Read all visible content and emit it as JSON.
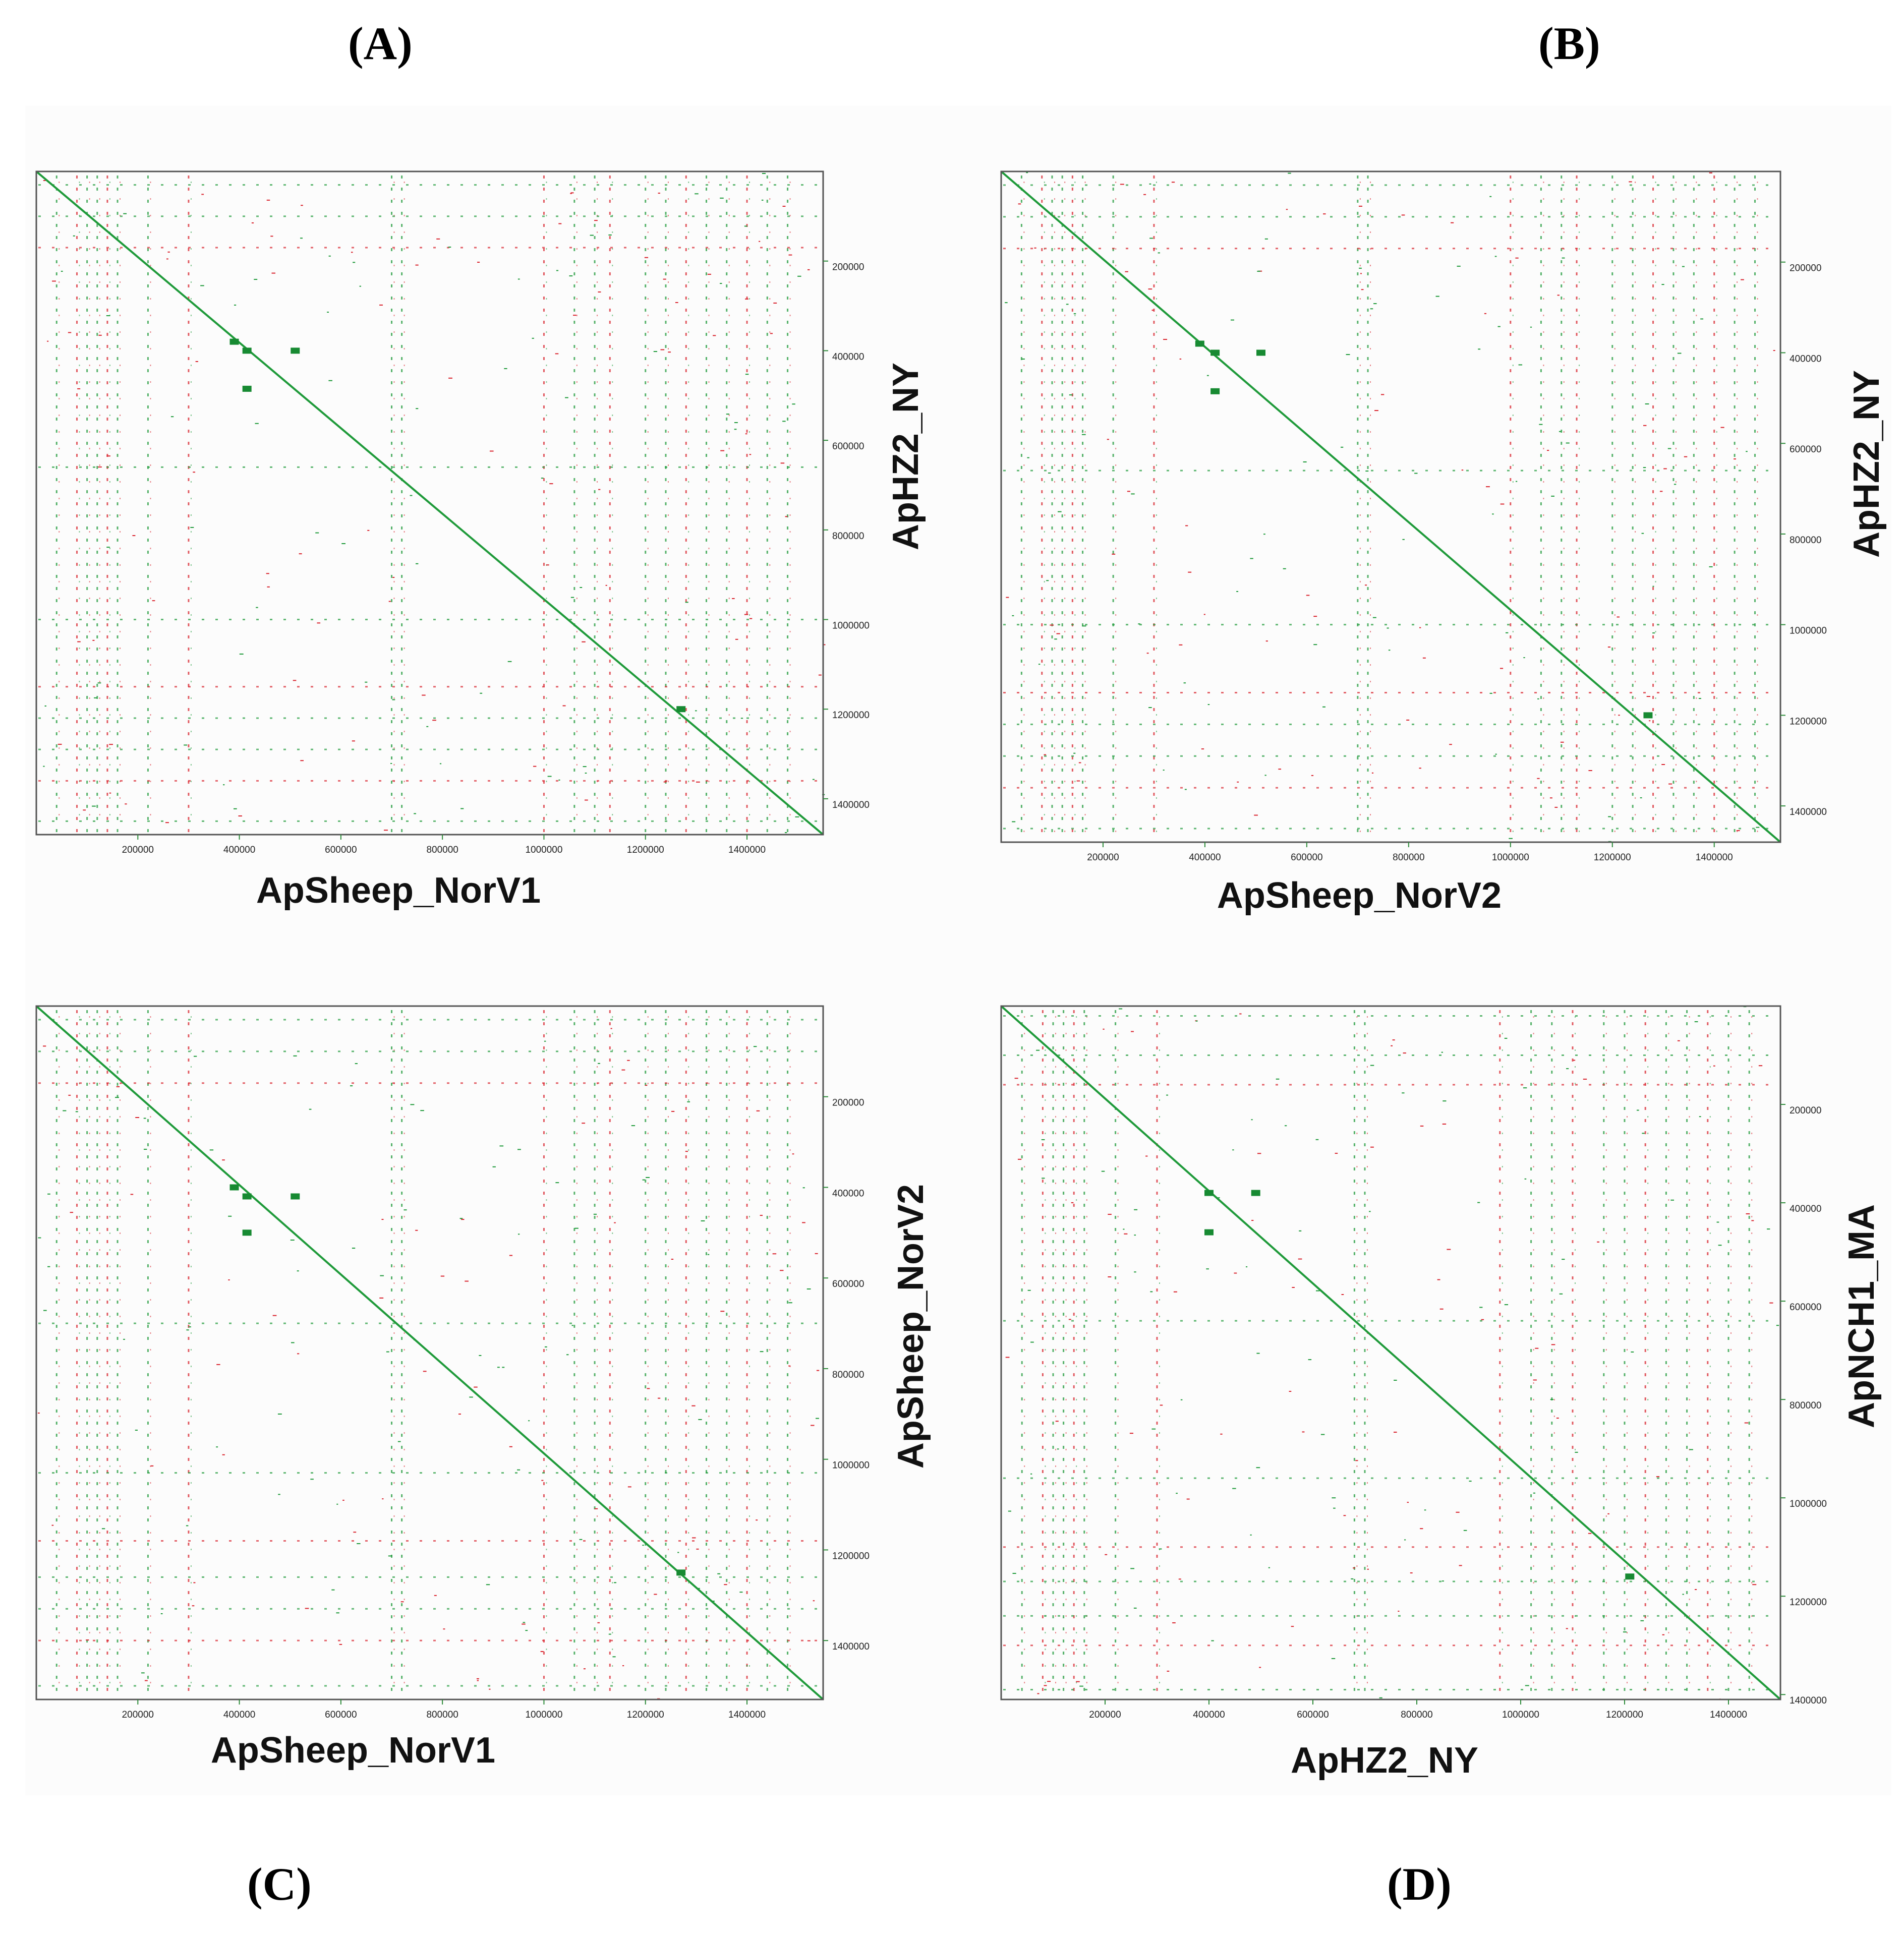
{
  "figure": {
    "panels": [
      {
        "letter": "(A)",
        "xlabel": "ApSheep_NorV1",
        "ylabel": "ApHZ2_NY"
      },
      {
        "letter": "(B)",
        "xlabel": "ApSheep_NorV2",
        "ylabel": "ApHZ2_NY"
      },
      {
        "letter": "(C)",
        "xlabel": "ApSheep_NorV1",
        "ylabel": "ApSheep_NorV2"
      },
      {
        "letter": "(D)",
        "xlabel": "ApHZ2_NY",
        "ylabel": "ApNCH1_MA"
      }
    ]
  },
  "colors": {
    "forward": "#1f9a3a",
    "reverse": "#d9232d",
    "axis": "#2e8b3a",
    "frame": "#555555"
  },
  "chart_data": [
    {
      "type": "scatter",
      "title": "(A)",
      "xlabel": "ApSheep_NorV1",
      "ylabel": "ApHZ2_NY",
      "xlim": [
        0,
        1550000
      ],
      "ylim": [
        0,
        1480000
      ],
      "xticks": [
        200000,
        400000,
        600000,
        800000,
        1000000,
        1200000,
        1400000
      ],
      "yticks": [
        200000,
        400000,
        600000,
        800000,
        1000000,
        1200000,
        1400000
      ],
      "diagonal": {
        "x": [
          0,
          1550000
        ],
        "y": [
          0,
          1480000
        ]
      },
      "blocks": [
        [
          390000,
          380000
        ],
        [
          415000,
          400000
        ],
        [
          510000,
          400000
        ],
        [
          415000,
          485000
        ],
        [
          1270000,
          1200000
        ]
      ],
      "repeat_columns": [
        40000,
        80000,
        100000,
        120000,
        140000,
        160000,
        220000,
        300000,
        700000,
        720000,
        1000000,
        1060000,
        1100000,
        1130000,
        1200000,
        1240000,
        1280000,
        1320000,
        1360000,
        1400000,
        1440000,
        1480000
      ],
      "repeat_rows": [
        30000,
        100000,
        170000,
        660000,
        1000000,
        1150000,
        1220000,
        1290000,
        1360000,
        1450000
      ]
    },
    {
      "type": "scatter",
      "title": "(B)",
      "xlabel": "ApSheep_NorV2",
      "ylabel": "ApHZ2_NY",
      "xlim": [
        0,
        1530000
      ],
      "ylim": [
        0,
        1480000
      ],
      "xticks": [
        200000,
        400000,
        600000,
        800000,
        1000000,
        1200000,
        1400000
      ],
      "yticks": [
        200000,
        400000,
        600000,
        800000,
        1000000,
        1200000,
        1400000
      ],
      "diagonal": {
        "x": [
          0,
          1530000
        ],
        "y": [
          0,
          1480000
        ]
      },
      "blocks": [
        [
          390000,
          380000
        ],
        [
          420000,
          400000
        ],
        [
          510000,
          400000
        ],
        [
          420000,
          485000
        ],
        [
          1270000,
          1200000
        ]
      ],
      "repeat_columns": [
        40000,
        80000,
        100000,
        120000,
        140000,
        160000,
        220000,
        300000,
        700000,
        720000,
        1000000,
        1060000,
        1100000,
        1130000,
        1200000,
        1240000,
        1280000,
        1320000,
        1360000,
        1400000,
        1440000,
        1480000
      ],
      "repeat_rows": [
        30000,
        100000,
        170000,
        660000,
        1000000,
        1150000,
        1220000,
        1290000,
        1360000,
        1450000
      ]
    },
    {
      "type": "scatter",
      "title": "(C)",
      "xlabel": "ApSheep_NorV1",
      "ylabel": "ApSheep_NorV2",
      "xlim": [
        0,
        1550000
      ],
      "ylim": [
        0,
        1530000
      ],
      "xticks": [
        200000,
        400000,
        600000,
        800000,
        1000000,
        1200000,
        1400000
      ],
      "yticks": [
        200000,
        400000,
        600000,
        800000,
        1000000,
        1200000,
        1400000
      ],
      "diagonal": {
        "x": [
          0,
          1550000
        ],
        "y": [
          0,
          1530000
        ]
      },
      "blocks": [
        [
          390000,
          400000
        ],
        [
          415000,
          420000
        ],
        [
          510000,
          420000
        ],
        [
          415000,
          500000
        ],
        [
          1270000,
          1250000
        ]
      ],
      "repeat_columns": [
        40000,
        80000,
        100000,
        120000,
        140000,
        160000,
        220000,
        300000,
        700000,
        720000,
        1000000,
        1060000,
        1100000,
        1130000,
        1200000,
        1240000,
        1280000,
        1320000,
        1360000,
        1400000,
        1440000,
        1480000
      ],
      "repeat_rows": [
        30000,
        100000,
        170000,
        700000,
        1030000,
        1180000,
        1260000,
        1330000,
        1400000,
        1500000
      ]
    },
    {
      "type": "scatter",
      "title": "(D)",
      "xlabel": "ApHZ2_NY",
      "ylabel": "ApNCH1_MA",
      "xlim": [
        0,
        1500000
      ],
      "ylim": [
        0,
        1410000
      ],
      "xticks": [
        200000,
        400000,
        600000,
        800000,
        1000000,
        1200000,
        1400000
      ],
      "yticks": [
        200000,
        400000,
        600000,
        800000,
        1000000,
        1200000,
        1400000
      ],
      "diagonal": {
        "x": [
          0,
          1500000
        ],
        "y": [
          0,
          1410000
        ]
      },
      "blocks": [
        [
          400000,
          380000
        ],
        [
          490000,
          380000
        ],
        [
          400000,
          460000
        ],
        [
          1210000,
          1160000
        ]
      ],
      "repeat_columns": [
        40000,
        80000,
        100000,
        120000,
        140000,
        160000,
        220000,
        300000,
        680000,
        700000,
        960000,
        1020000,
        1060000,
        1100000,
        1160000,
        1200000,
        1240000,
        1280000,
        1320000,
        1360000,
        1400000,
        1440000
      ],
      "repeat_rows": [
        20000,
        100000,
        160000,
        640000,
        960000,
        1100000,
        1170000,
        1240000,
        1300000,
        1390000
      ]
    }
  ]
}
